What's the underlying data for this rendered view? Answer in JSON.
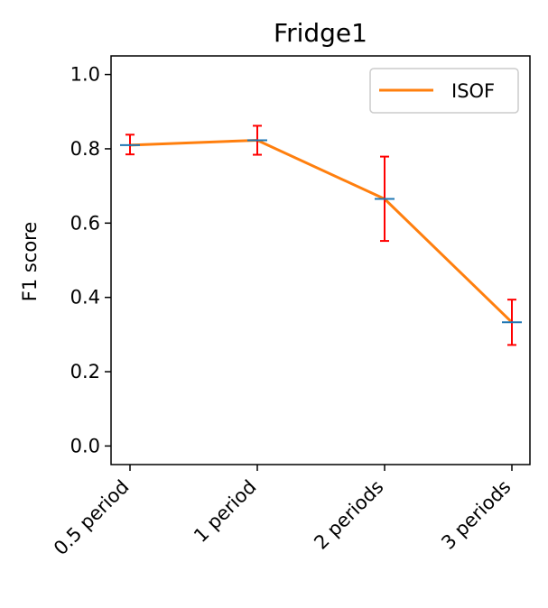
{
  "chart_data": {
    "type": "line",
    "title": "Fridge1",
    "xlabel": "",
    "ylabel": "F1 score",
    "categories": [
      "0.5 period",
      "1 period",
      "2 periods",
      "3 periods"
    ],
    "series": [
      {
        "name": "ISOF",
        "color": "#ff7f0e",
        "values": [
          0.81,
          0.823,
          0.665,
          0.333
        ],
        "err_low": [
          0.785,
          0.784,
          0.552,
          0.272
        ],
        "err_high": [
          0.838,
          0.862,
          0.779,
          0.394
        ]
      }
    ],
    "ylim": [
      -0.05,
      1.05
    ],
    "yticks": [
      "0.0",
      "0.2",
      "0.4",
      "0.6",
      "0.8",
      "1.0"
    ],
    "grid": false,
    "legend_position": "top-right",
    "errorbar_color": "#ff0000",
    "marker_color": "#1f77b4"
  }
}
